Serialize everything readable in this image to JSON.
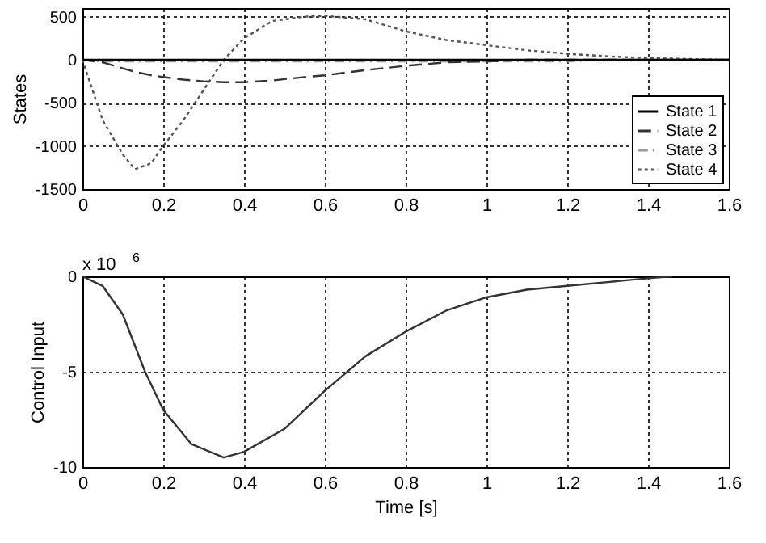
{
  "chart_data": [
    {
      "type": "line",
      "ylabel": "States",
      "xlim": [
        0,
        1.6
      ],
      "xticks": [
        0,
        0.2,
        0.4,
        0.6,
        0.8,
        1,
        1.2,
        1.4,
        1.6
      ],
      "ylim": [
        -1500,
        600
      ],
      "yticks": [
        -1500,
        -1000,
        -500,
        0,
        500
      ],
      "grid": true,
      "legend": "bottom right",
      "x": [
        0,
        0.05,
        0.1,
        0.13,
        0.17,
        0.2,
        0.25,
        0.3,
        0.35,
        0.4,
        0.47,
        0.55,
        0.6,
        0.7,
        0.8,
        0.9,
        1.0,
        1.1,
        1.2,
        1.3,
        1.4,
        1.5,
        1.6
      ],
      "series": [
        {
          "name": "State 1",
          "color": "#000000",
          "line_style": "solid",
          "values": [
            0,
            0,
            0,
            0,
            0,
            0,
            0,
            0,
            0,
            0,
            0,
            0,
            0,
            0,
            0,
            0,
            0,
            0,
            0,
            0,
            0,
            0,
            0
          ]
        },
        {
          "name": "State 2",
          "color": "#333333",
          "line_style": "dashed",
          "values": [
            0,
            -30,
            -100,
            -140,
            -180,
            -200,
            -230,
            -250,
            -260,
            -260,
            -240,
            -200,
            -180,
            -120,
            -70,
            -30,
            -20,
            0,
            0,
            0,
            0,
            0,
            0
          ]
        },
        {
          "name": "State 3",
          "color": "#999999",
          "line_style": "dashdot",
          "values": [
            0,
            -20,
            -20,
            -20,
            -20,
            -20,
            -20,
            -20,
            -20,
            -20,
            -20,
            -20,
            -20,
            -20,
            -20,
            -20,
            -20,
            -20,
            -20,
            0,
            0,
            0,
            0
          ]
        },
        {
          "name": "State 4",
          "color": "#555555",
          "line_style": "dotted",
          "values": [
            0,
            -700,
            -1100,
            -1270,
            -1200,
            -1000,
            -700,
            -350,
            0,
            250,
            450,
            500,
            510,
            470,
            330,
            230,
            170,
            110,
            70,
            40,
            20,
            10,
            0
          ]
        }
      ]
    },
    {
      "type": "line",
      "xlabel": "Time [s]",
      "ylabel": "Control Input",
      "annotations": [
        "x 10$^{6}$"
      ],
      "xlim": [
        0,
        1.6
      ],
      "xticks": [
        0,
        0.2,
        0.4,
        0.6,
        0.8,
        1,
        1.2,
        1.4,
        1.6
      ],
      "ylim": [
        -10,
        0
      ],
      "yticks": [
        -10,
        -5,
        0
      ],
      "grid": true,
      "x": [
        0,
        0.05,
        0.1,
        0.155,
        0.2,
        0.27,
        0.35,
        0.4,
        0.5,
        0.6,
        0.7,
        0.8,
        0.9,
        1.0,
        1.1,
        1.2,
        1.3,
        1.4,
        1.46
      ],
      "series": [
        {
          "color": "#333333",
          "line_style": "solid",
          "values": [
            0,
            -0.5,
            -2,
            -5,
            -7,
            -8.8,
            -9.5,
            -9.2,
            -8,
            -6,
            -4.2,
            -2.9,
            -1.8,
            -1.1,
            -0.7,
            -0.5,
            -0.3,
            -0.1,
            0
          ]
        }
      ]
    }
  ]
}
